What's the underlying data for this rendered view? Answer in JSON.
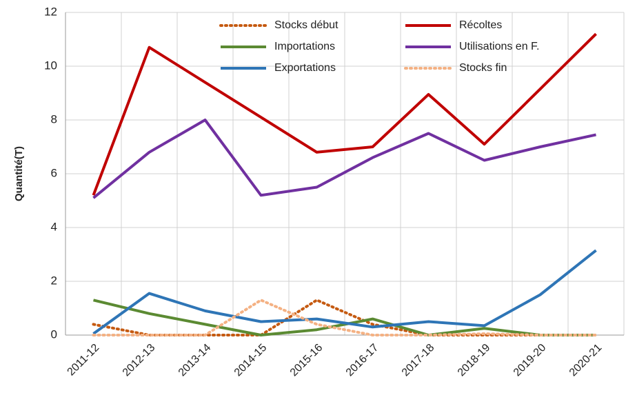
{
  "chart_data": {
    "type": "line",
    "y_label": "Quantité(T)",
    "categories": [
      "2011-12",
      "2012-13",
      "2013-14",
      "2014-15",
      "2015-16",
      "2016-17",
      "2017-18",
      "2018-19",
      "2019-20",
      "2020-21"
    ],
    "series": [
      {
        "name": "Stocks début",
        "color": "#c55a11",
        "dash": "dot",
        "values": [
          0.4,
          0.0,
          0.0,
          0.0,
          1.3,
          0.4,
          0.0,
          0.0,
          0.0,
          0.0
        ]
      },
      {
        "name": "Récoltes",
        "color": "#c00000",
        "dash": "solid",
        "values": [
          5.2,
          10.7,
          9.4,
          8.1,
          6.8,
          7.0,
          8.95,
          7.1,
          9.15,
          11.2
        ]
      },
      {
        "name": "Importations",
        "color": "#5b8a32",
        "dash": "solid",
        "values": [
          1.3,
          0.8,
          0.4,
          0.0,
          0.2,
          0.6,
          0.0,
          0.25,
          0.0,
          0.0
        ]
      },
      {
        "name": "Utilisations en F.",
        "color": "#7030a0",
        "dash": "solid",
        "values": [
          5.1,
          6.8,
          8.0,
          5.2,
          5.5,
          6.6,
          7.5,
          6.5,
          7.0,
          7.45
        ]
      },
      {
        "name": "Exportations",
        "color": "#2e75b6",
        "dash": "solid",
        "values": [
          0.05,
          1.55,
          0.9,
          0.5,
          0.6,
          0.3,
          0.5,
          0.35,
          1.5,
          3.15
        ]
      },
      {
        "name": "Stocks fin",
        "color": "#f4b183",
        "dash": "dot",
        "values": [
          0.0,
          0.0,
          0.0,
          1.3,
          0.4,
          0.0,
          0.0,
          0.05,
          0.0,
          0.0
        ]
      }
    ],
    "ylim": [
      0,
      12
    ],
    "yticks": [
      0,
      2,
      4,
      6,
      8,
      10,
      12
    ],
    "grid": true
  }
}
